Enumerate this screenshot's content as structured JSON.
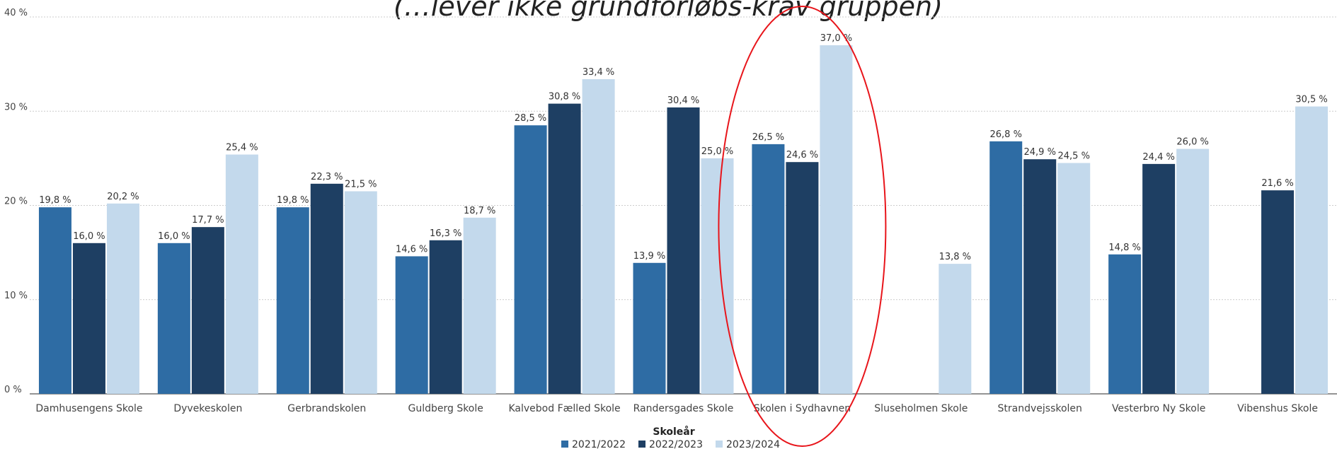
{
  "chart_data": {
    "type": "bar",
    "title": "(…lever ikke grundforløbs-krav gruppen)",
    "categories": [
      "Damhusengens Skole",
      "Dyvekeskolen",
      "Gerbrandskolen",
      "Guldberg Skole",
      "Kalvebod Fælled Skole",
      "Randersgades Skole",
      "Skolen i Sydhavnen",
      "Sluseholmen Skole",
      "Strandvejsskolen",
      "Vesterbro Ny Skole",
      "Vibenshus Skole"
    ],
    "series": [
      {
        "name": "2021/2022",
        "color": "#2e6ca4",
        "values": [
          19.8,
          16.0,
          19.8,
          14.6,
          28.5,
          13.9,
          26.5,
          null,
          26.8,
          14.8,
          null
        ],
        "labels": [
          "19,8 %",
          "16,0 %",
          "19,8 %",
          "14,6 %",
          "28,5 %",
          "13,9 %",
          "26,5 %",
          "",
          "26,8 %",
          "14,8 %",
          ""
        ]
      },
      {
        "name": "2022/2023",
        "color": "#1e3f63",
        "values": [
          16.0,
          17.7,
          22.3,
          16.3,
          30.8,
          30.4,
          24.6,
          null,
          24.9,
          24.4,
          21.6
        ],
        "labels": [
          "16,0 %",
          "17,7 %",
          "22,3 %",
          "16,3 %",
          "30,8 %",
          "30,4 %",
          "24,6 %",
          "",
          "24,9 %",
          "24,4 %",
          "21,6 %"
        ]
      },
      {
        "name": "2023/2024",
        "color": "#c3d9ec",
        "values": [
          20.2,
          25.4,
          21.5,
          18.7,
          33.4,
          25.0,
          37.0,
          13.8,
          24.5,
          26.0,
          30.5
        ],
        "labels": [
          "20,2 %",
          "25,4 %",
          "21,5 %",
          "18,7 %",
          "33,4 %",
          "25,0 %",
          "37,0 %",
          "13,8 %",
          "24,5 %",
          "26,0 %",
          "30,5 %"
        ]
      }
    ],
    "ylim": [
      0,
      40
    ],
    "yticks": [
      0,
      10,
      20,
      30,
      40
    ],
    "ytick_labels": [
      "0 %",
      "10 %",
      "20 %",
      "30 %",
      "40 %"
    ],
    "grid": true,
    "legend": {
      "title": "Skoleår",
      "placement": "bottom-center"
    },
    "highlight": {
      "category": "Skolen i Sydhavnen",
      "shape": "ellipse",
      "color": "#e8151b"
    }
  }
}
